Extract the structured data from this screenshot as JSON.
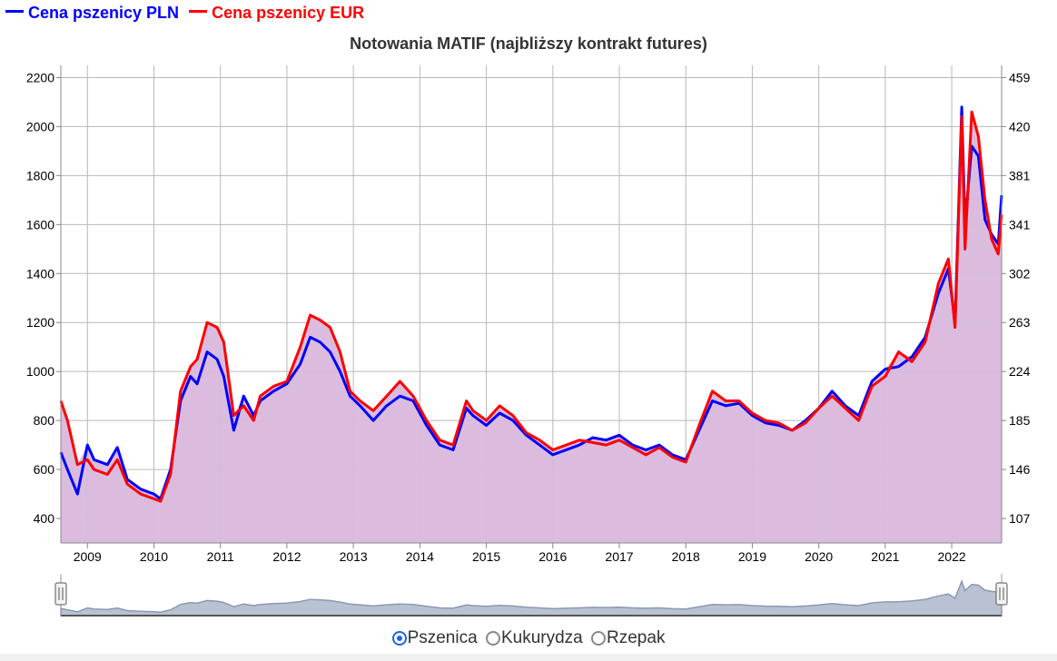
{
  "legend": {
    "items": [
      {
        "label": "Cena pszenicy PLN",
        "color": "#0000ff"
      },
      {
        "label": "Cena pszenicy EUR",
        "color": "#ff0000"
      }
    ]
  },
  "chart_data": {
    "type": "area",
    "title": "Notowania MATIF (najbliższy kontrakt futures)",
    "x_ticks": [
      "2009",
      "2010",
      "2011",
      "2012",
      "2013",
      "2014",
      "2015",
      "2016",
      "2017",
      "2018",
      "2019",
      "2020",
      "2021",
      "2022"
    ],
    "x_range": [
      2008.6,
      2022.75
    ],
    "left_axis": {
      "ticks": [
        "400",
        "600",
        "800",
        "1000",
        "1200",
        "1400",
        "1600",
        "1800",
        "2000",
        "2200"
      ],
      "ylim": [
        300,
        2250
      ]
    },
    "right_axis": {
      "ticks": [
        "107",
        "146",
        "185",
        "224",
        "263",
        "302",
        "341",
        "381",
        "420",
        "459"
      ]
    },
    "grid": true,
    "fill_color": "#d9b8dd",
    "series": [
      {
        "name": "Cena pszenicy PLN",
        "color": "#0000ff",
        "x": [
          2008.6,
          2008.7,
          2008.85,
          2009.0,
          2009.1,
          2009.3,
          2009.45,
          2009.6,
          2009.8,
          2010.0,
          2010.1,
          2010.25,
          2010.4,
          2010.55,
          2010.65,
          2010.8,
          2010.95,
          2011.05,
          2011.2,
          2011.35,
          2011.5,
          2011.6,
          2011.8,
          2012.0,
          2012.2,
          2012.35,
          2012.5,
          2012.65,
          2012.8,
          2012.95,
          2013.1,
          2013.3,
          2013.5,
          2013.7,
          2013.9,
          2014.1,
          2014.3,
          2014.5,
          2014.7,
          2014.8,
          2015.0,
          2015.2,
          2015.4,
          2015.6,
          2015.8,
          2016.0,
          2016.2,
          2016.4,
          2016.6,
          2016.8,
          2017.0,
          2017.2,
          2017.4,
          2017.6,
          2017.8,
          2018.0,
          2018.2,
          2018.4,
          2018.6,
          2018.8,
          2019.0,
          2019.2,
          2019.4,
          2019.6,
          2019.8,
          2020.0,
          2020.2,
          2020.4,
          2020.6,
          2020.8,
          2021.0,
          2021.2,
          2021.4,
          2021.6,
          2021.8,
          2021.95,
          2022.05,
          2022.15,
          2022.2,
          2022.3,
          2022.4,
          2022.5,
          2022.6,
          2022.7,
          2022.75
        ],
        "values": [
          670,
          600,
          500,
          700,
          640,
          620,
          690,
          560,
          520,
          500,
          480,
          600,
          880,
          980,
          950,
          1080,
          1050,
          980,
          760,
          900,
          820,
          880,
          920,
          950,
          1030,
          1140,
          1120,
          1080,
          1000,
          900,
          860,
          800,
          860,
          900,
          880,
          780,
          700,
          680,
          850,
          820,
          780,
          830,
          800,
          740,
          700,
          660,
          680,
          700,
          730,
          720,
          740,
          700,
          680,
          700,
          660,
          640,
          760,
          880,
          860,
          870,
          820,
          790,
          780,
          760,
          800,
          850,
          920,
          860,
          820,
          960,
          1010,
          1020,
          1060,
          1140,
          1320,
          1420,
          1200,
          2080,
          1600,
          1920,
          1880,
          1620,
          1560,
          1520,
          1720
        ]
      },
      {
        "name": "Cena pszenicy EUR",
        "color": "#ff0000",
        "x": [
          2008.6,
          2008.7,
          2008.85,
          2009.0,
          2009.1,
          2009.3,
          2009.45,
          2009.6,
          2009.8,
          2010.0,
          2010.1,
          2010.25,
          2010.4,
          2010.55,
          2010.65,
          2010.8,
          2010.95,
          2011.05,
          2011.2,
          2011.35,
          2011.5,
          2011.6,
          2011.8,
          2012.0,
          2012.2,
          2012.35,
          2012.5,
          2012.65,
          2012.8,
          2012.95,
          2013.1,
          2013.3,
          2013.5,
          2013.7,
          2013.9,
          2014.1,
          2014.3,
          2014.5,
          2014.7,
          2014.8,
          2015.0,
          2015.2,
          2015.4,
          2015.6,
          2015.8,
          2016.0,
          2016.2,
          2016.4,
          2016.6,
          2016.8,
          2017.0,
          2017.2,
          2017.4,
          2017.6,
          2017.8,
          2018.0,
          2018.2,
          2018.4,
          2018.6,
          2018.8,
          2019.0,
          2019.2,
          2019.4,
          2019.6,
          2019.8,
          2020.0,
          2020.2,
          2020.4,
          2020.6,
          2020.8,
          2021.0,
          2021.2,
          2021.4,
          2021.6,
          2021.8,
          2021.95,
          2022.05,
          2022.15,
          2022.2,
          2022.3,
          2022.4,
          2022.5,
          2022.6,
          2022.7,
          2022.75
        ],
        "values": [
          880,
          800,
          620,
          640,
          600,
          580,
          640,
          540,
          500,
          480,
          470,
          580,
          920,
          1020,
          1050,
          1200,
          1180,
          1120,
          820,
          860,
          800,
          900,
          940,
          960,
          1100,
          1230,
          1210,
          1180,
          1080,
          920,
          880,
          840,
          900,
          960,
          900,
          800,
          720,
          700,
          880,
          840,
          800,
          860,
          820,
          750,
          720,
          680,
          700,
          720,
          710,
          700,
          720,
          690,
          660,
          690,
          650,
          630,
          780,
          920,
          880,
          880,
          830,
          800,
          790,
          760,
          790,
          850,
          900,
          850,
          800,
          940,
          980,
          1080,
          1040,
          1120,
          1360,
          1460,
          1180,
          2040,
          1500,
          2060,
          1960,
          1700,
          1540,
          1480,
          1640
        ]
      }
    ]
  },
  "navigator": {
    "x_range": [
      2008.6,
      2022.75
    ]
  },
  "product_selector": {
    "options": [
      {
        "label": "Pszenica",
        "checked": true
      },
      {
        "label": "Kukurydza",
        "checked": false
      },
      {
        "label": "Rzepak",
        "checked": false
      }
    ]
  }
}
